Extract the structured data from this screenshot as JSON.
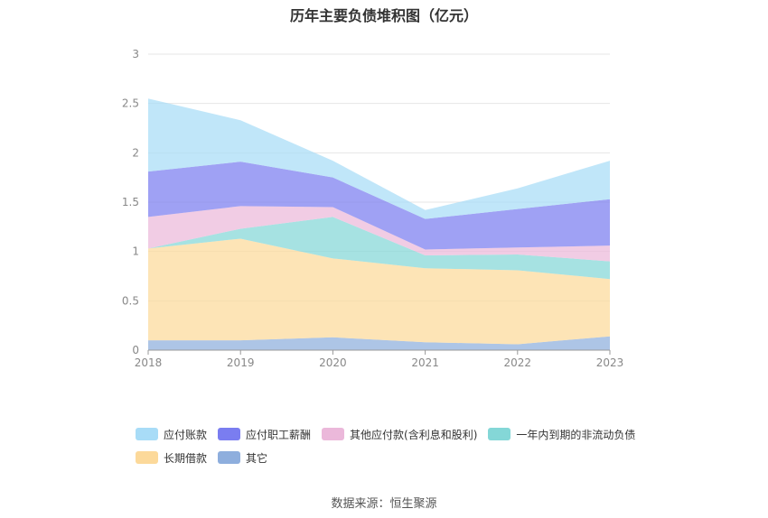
{
  "chart_data": {
    "type": "area",
    "stacked": true,
    "title": "历年主要负债堆积图（亿元）",
    "source": "数据来源：恒生聚源",
    "x": [
      "2018",
      "2019",
      "2020",
      "2021",
      "2022",
      "2023"
    ],
    "yticks": [
      "0",
      "0.5",
      "1",
      "1.5",
      "2",
      "2.5",
      "3"
    ],
    "ylim": [
      0,
      3
    ],
    "grid": true,
    "legend_position": "bottom",
    "series": [
      {
        "name": "其它",
        "color": "#8eaedd",
        "values": [
          0.1,
          0.1,
          0.13,
          0.08,
          0.06,
          0.14
        ]
      },
      {
        "name": "长期借款",
        "color": "#fcd99a",
        "values": [
          0.93,
          1.03,
          0.8,
          0.75,
          0.75,
          0.58
        ]
      },
      {
        "name": "一年内到期的非流动负债",
        "color": "#84d7d7",
        "values": [
          0.0,
          0.1,
          0.42,
          0.13,
          0.16,
          0.18
        ]
      },
      {
        "name": "其他应付款(含利息和股利)",
        "color": "#ebb8da",
        "values": [
          0.32,
          0.23,
          0.1,
          0.06,
          0.07,
          0.16
        ]
      },
      {
        "name": "应付职工薪酬",
        "color": "#7a7df0",
        "values": [
          0.46,
          0.45,
          0.3,
          0.31,
          0.39,
          0.47
        ]
      },
      {
        "name": "应付账款",
        "color": "#a8dcf7",
        "values": [
          0.74,
          0.42,
          0.17,
          0.09,
          0.21,
          0.39
        ]
      }
    ],
    "legend_order": [
      "应付账款",
      "应付职工薪酬",
      "其他应付款(含利息和股利)",
      "一年内到期的非流动负债",
      "长期借款",
      "其它"
    ]
  }
}
